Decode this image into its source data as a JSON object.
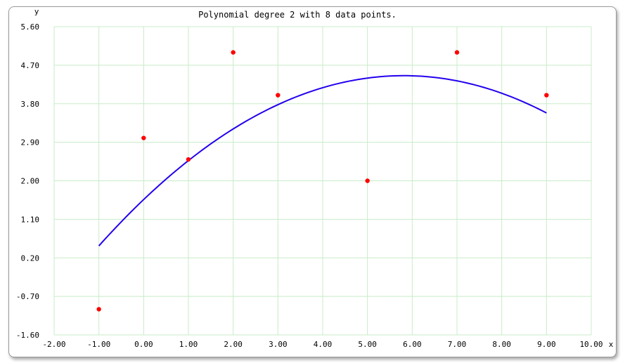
{
  "chart_data": {
    "type": "scatter",
    "title": "Polynomial degree 2 with 8 data points.",
    "xlabel": "x",
    "ylabel": "y",
    "xlim": [
      -2,
      10
    ],
    "ylim": [
      -1.6,
      5.6
    ],
    "x_ticks": [
      "-2.00",
      "-1.00",
      "0.00",
      "1.00",
      "2.00",
      "3.00",
      "4.00",
      "5.00",
      "6.00",
      "7.00",
      "8.00",
      "9.00",
      "10.00"
    ],
    "y_ticks": [
      "5.60",
      "4.70",
      "3.80",
      "2.90",
      "2.00",
      "1.10",
      "0.20",
      "-0.70",
      "-1.60"
    ],
    "grid": true,
    "points": [
      {
        "x": -1,
        "y": -1
      },
      {
        "x": 0,
        "y": 3
      },
      {
        "x": 1,
        "y": 2.5
      },
      {
        "x": 2,
        "y": 5
      },
      {
        "x": 3,
        "y": 4
      },
      {
        "x": 5,
        "y": 2
      },
      {
        "x": 7,
        "y": 5
      },
      {
        "x": 9,
        "y": 4
      }
    ],
    "fit_curve": {
      "degree": 2,
      "coefficients": [
        1.562,
        0.996,
        -0.0857
      ],
      "x_range": [
        -1,
        9
      ]
    },
    "colors": {
      "points": "#ff0000",
      "curve": "#2200ee",
      "grid": "#c8ecc8"
    }
  }
}
